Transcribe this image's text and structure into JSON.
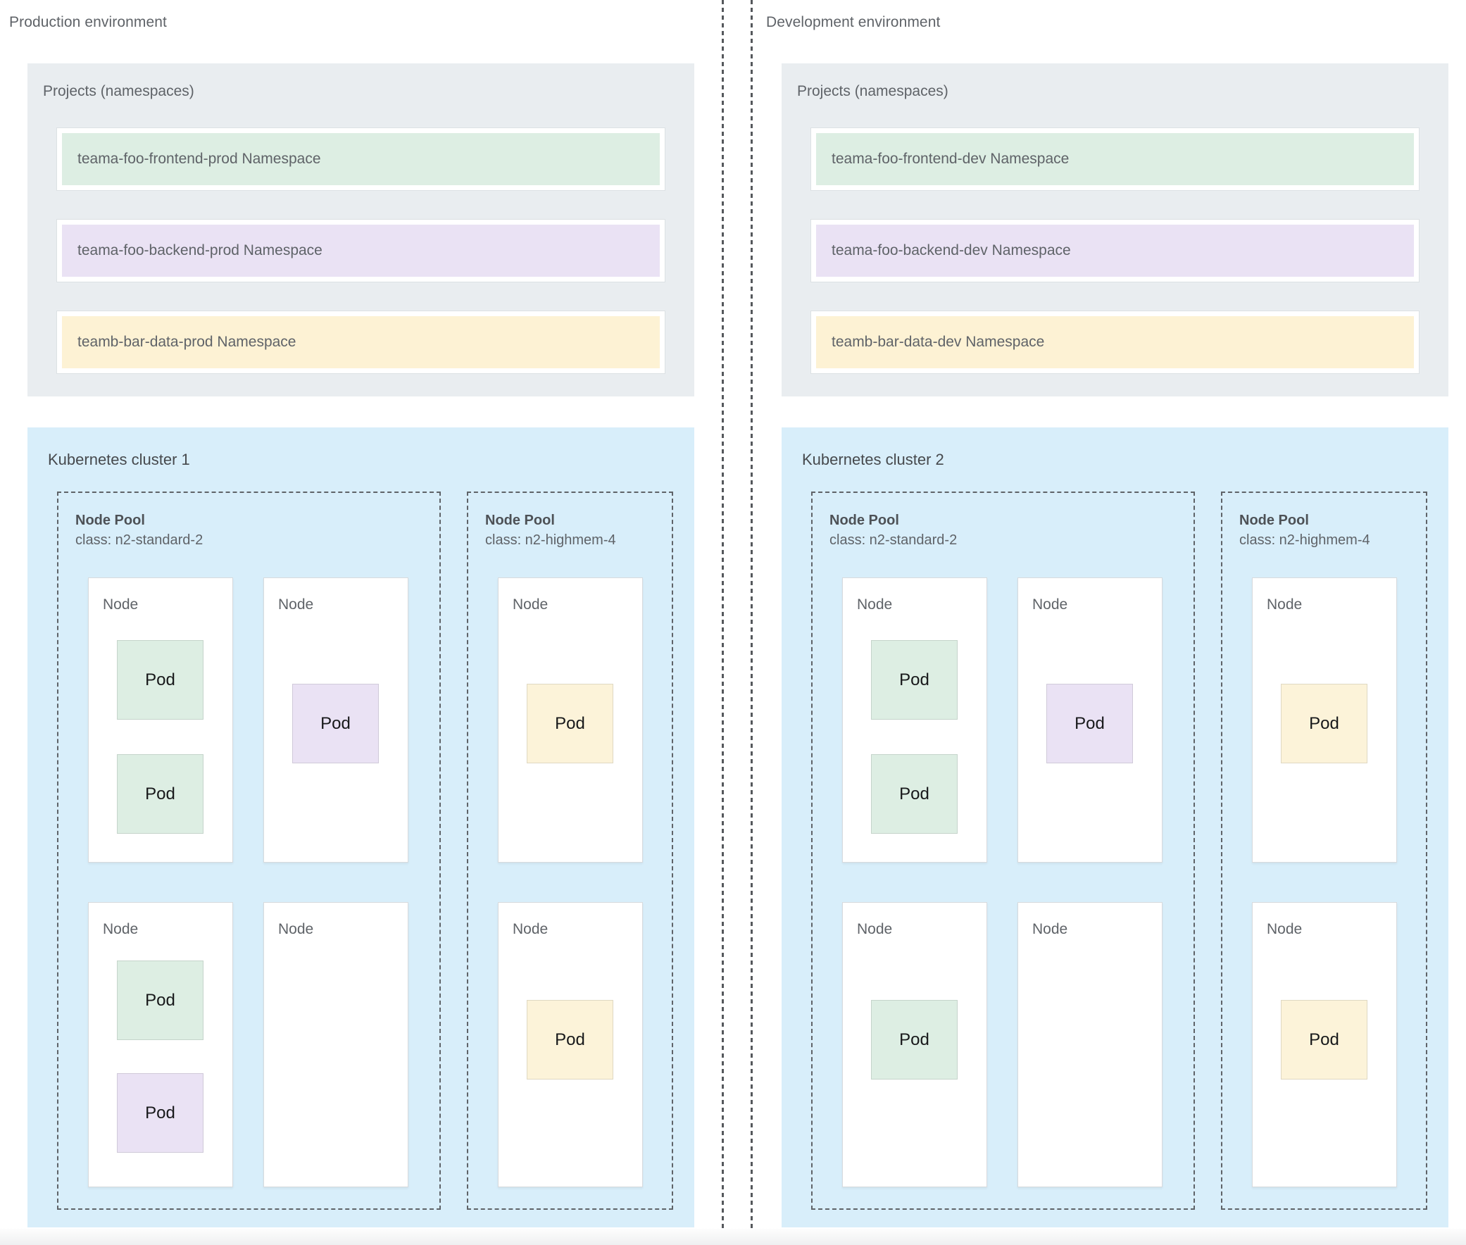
{
  "colors": {
    "panel_gray": "#e9edf0",
    "cluster_blue": "#d8eefa",
    "namespace_green": "#ddeee3",
    "namespace_purple": "#eae2f4",
    "namespace_yellow": "#fdf2d4",
    "pod_green": "#ddeee3",
    "pod_purple": "#eae2f4",
    "pod_yellow": "#fcf3d9",
    "text_gray": "#5f6368",
    "dashed_border": "#5f6368"
  },
  "environments": [
    {
      "label": "Production environment",
      "projects": {
        "title": "Projects (namespaces)",
        "namespaces": [
          {
            "label": "teama-foo-frontend-prod Namespace",
            "color": "green"
          },
          {
            "label": "teama-foo-backend-prod Namespace",
            "color": "purple"
          },
          {
            "label": "teamb-bar-data-prod Namespace",
            "color": "yellow"
          }
        ]
      },
      "cluster": {
        "title": "Kubernetes cluster 1",
        "pools": [
          {
            "title": "Node Pool",
            "class_line": "class: n2-standard-2",
            "nodes": [
              {
                "label": "Node",
                "pods": [
                  {
                    "label": "Pod",
                    "color": "green"
                  },
                  {
                    "label": "Pod",
                    "color": "green"
                  }
                ]
              },
              {
                "label": "Node",
                "pods": [
                  {
                    "label": "Pod",
                    "color": "purple"
                  }
                ]
              },
              {
                "label": "Node",
                "pods": [
                  {
                    "label": "Pod",
                    "color": "green"
                  },
                  {
                    "label": "Pod",
                    "color": "purple"
                  }
                ]
              },
              {
                "label": "Node",
                "pods": []
              }
            ]
          },
          {
            "title": "Node Pool",
            "class_line": "class: n2-highmem-4",
            "nodes": [
              {
                "label": "Node",
                "pods": [
                  {
                    "label": "Pod",
                    "color": "yellow"
                  }
                ]
              },
              {
                "label": "Node",
                "pods": [
                  {
                    "label": "Pod",
                    "color": "yellow"
                  }
                ]
              }
            ]
          }
        ]
      }
    },
    {
      "label": "Development environment",
      "projects": {
        "title": "Projects (namespaces)",
        "namespaces": [
          {
            "label": "teama-foo-frontend-dev Namespace",
            "color": "green"
          },
          {
            "label": "teama-foo-backend-dev Namespace",
            "color": "purple"
          },
          {
            "label": "teamb-bar-data-dev Namespace",
            "color": "yellow"
          }
        ]
      },
      "cluster": {
        "title": "Kubernetes cluster 2",
        "pools": [
          {
            "title": "Node Pool",
            "class_line": "class: n2-standard-2",
            "nodes": [
              {
                "label": "Node",
                "pods": [
                  {
                    "label": "Pod",
                    "color": "green"
                  },
                  {
                    "label": "Pod",
                    "color": "green"
                  }
                ]
              },
              {
                "label": "Node",
                "pods": [
                  {
                    "label": "Pod",
                    "color": "purple"
                  }
                ]
              },
              {
                "label": "Node",
                "pods": [
                  {
                    "label": "Pod",
                    "color": "green"
                  }
                ]
              },
              {
                "label": "Node",
                "pods": []
              }
            ]
          },
          {
            "title": "Node Pool",
            "class_line": "class: n2-highmem-4",
            "nodes": [
              {
                "label": "Node",
                "pods": [
                  {
                    "label": "Pod",
                    "color": "yellow"
                  }
                ]
              },
              {
                "label": "Node",
                "pods": [
                  {
                    "label": "Pod",
                    "color": "yellow"
                  }
                ]
              }
            ]
          }
        ]
      }
    }
  ]
}
